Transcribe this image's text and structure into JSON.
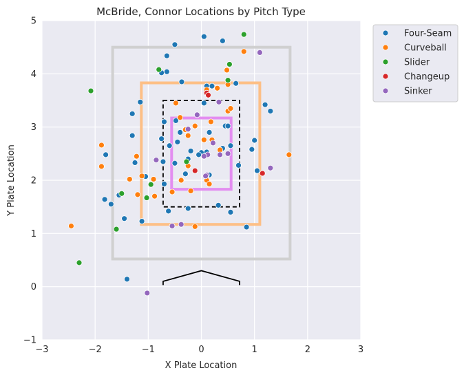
{
  "chart_data": {
    "type": "scatter",
    "title": "McBride, Connor Locations by Pitch Type",
    "xlabel": "X Plate Location",
    "ylabel": "Y Plate Location",
    "xlim": [
      -3,
      3
    ],
    "ylim": [
      -1,
      5
    ],
    "xticks": [
      "−3",
      "−2",
      "−1",
      "0",
      "1",
      "2",
      "3"
    ],
    "yticks": [
      "−1",
      "0",
      "1",
      "2",
      "3",
      "4",
      "5"
    ],
    "grid": true,
    "legend_position": "outside-top-right",
    "zones": [
      {
        "name": "outer-zone",
        "color": "#d0d0d0",
        "style": "solid",
        "x": [
          -1.67,
          1.67
        ],
        "y": [
          0.52,
          4.5
        ]
      },
      {
        "name": "orange-zone",
        "color": "#fdbf86",
        "style": "solid",
        "x": [
          -1.13,
          1.1
        ],
        "y": [
          1.17,
          3.83
        ]
      },
      {
        "name": "strike-zone",
        "color": "#000000",
        "style": "dashed",
        "x": [
          -0.72,
          0.72
        ],
        "y": [
          1.5,
          3.5
        ]
      },
      {
        "name": "inner-zone",
        "color": "#e38df0",
        "style": "solid",
        "x": [
          -0.56,
          0.56
        ],
        "y": [
          1.83,
          3.17
        ]
      }
    ],
    "plate": [
      [
        -0.72,
        0.03
      ],
      [
        -0.72,
        0.1
      ],
      [
        0,
        0.3
      ],
      [
        0.72,
        0.1
      ],
      [
        0.72,
        0.03
      ]
    ],
    "series": [
      {
        "name": "Four-Seam",
        "color": "#1f77b4",
        "points": [
          [
            0.05,
            4.7
          ],
          [
            0.4,
            4.62
          ],
          [
            -0.5,
            4.55
          ],
          [
            -0.65,
            4.34
          ],
          [
            -0.65,
            4.04
          ],
          [
            -0.75,
            4.02
          ],
          [
            -0.37,
            3.85
          ],
          [
            0.2,
            3.77
          ],
          [
            0.1,
            3.77
          ],
          [
            0.65,
            3.82
          ],
          [
            -1.15,
            3.47
          ],
          [
            0.05,
            3.45
          ],
          [
            1.2,
            3.42
          ],
          [
            1.3,
            3.3
          ],
          [
            -1.3,
            3.25
          ],
          [
            -0.48,
            3.12
          ],
          [
            -0.7,
            3.1
          ],
          [
            -0.4,
            2.9
          ],
          [
            0.15,
            2.9
          ],
          [
            0.45,
            3.02
          ],
          [
            0.5,
            3.02
          ],
          [
            -1.3,
            2.84
          ],
          [
            -0.75,
            2.78
          ],
          [
            -0.45,
            2.72
          ],
          [
            0.0,
            2.52
          ],
          [
            0.1,
            2.53
          ],
          [
            -0.6,
            2.65
          ],
          [
            0.55,
            2.65
          ],
          [
            0.4,
            2.6
          ],
          [
            1.0,
            2.75
          ],
          [
            0.95,
            2.58
          ],
          [
            -1.8,
            2.48
          ],
          [
            -0.2,
            2.55
          ],
          [
            -0.05,
            2.48
          ],
          [
            -1.25,
            2.33
          ],
          [
            -0.72,
            2.35
          ],
          [
            -0.25,
            2.4
          ],
          [
            -0.5,
            2.32
          ],
          [
            0.7,
            2.28
          ],
          [
            0.15,
            2.1
          ],
          [
            -0.3,
            2.12
          ],
          [
            1.05,
            2.18
          ],
          [
            -1.05,
            2.07
          ],
          [
            -0.7,
            1.93
          ],
          [
            -1.55,
            1.72
          ],
          [
            -1.82,
            1.64
          ],
          [
            -1.7,
            1.55
          ],
          [
            -0.25,
            1.47
          ],
          [
            0.32,
            1.53
          ],
          [
            0.55,
            1.4
          ],
          [
            -0.62,
            1.42
          ],
          [
            -1.45,
            1.28
          ],
          [
            -1.12,
            1.23
          ],
          [
            0.85,
            1.12
          ],
          [
            -1.4,
            0.14
          ]
        ]
      },
      {
        "name": "Curveball",
        "color": "#ff7f0e",
        "points": [
          [
            0.8,
            4.42
          ],
          [
            0.48,
            4.07
          ],
          [
            0.3,
            3.73
          ],
          [
            0.5,
            3.8
          ],
          [
            0.1,
            3.7
          ],
          [
            -0.48,
            3.45
          ],
          [
            -0.4,
            3.18
          ],
          [
            0.5,
            3.3
          ],
          [
            0.55,
            3.35
          ],
          [
            -0.12,
            3.02
          ],
          [
            -0.3,
            2.95
          ],
          [
            0.18,
            3.1
          ],
          [
            0.05,
            2.76
          ],
          [
            0.2,
            2.76
          ],
          [
            -0.25,
            2.84
          ],
          [
            -1.88,
            2.66
          ],
          [
            0.35,
            2.57
          ],
          [
            -1.22,
            2.45
          ],
          [
            -1.88,
            2.26
          ],
          [
            -0.25,
            2.27
          ],
          [
            -0.38,
            2.0
          ],
          [
            0.1,
            2.0
          ],
          [
            -1.12,
            2.08
          ],
          [
            -1.35,
            2.02
          ],
          [
            -0.9,
            2.02
          ],
          [
            -0.2,
            1.8
          ],
          [
            0.15,
            1.93
          ],
          [
            -0.55,
            1.78
          ],
          [
            -1.2,
            1.73
          ],
          [
            -0.88,
            1.7
          ],
          [
            -0.12,
            1.13
          ],
          [
            -2.45,
            1.14
          ],
          [
            1.65,
            2.48
          ]
        ]
      },
      {
        "name": "Slider",
        "color": "#2ca02c",
        "points": [
          [
            0.8,
            4.74
          ],
          [
            0.53,
            4.18
          ],
          [
            -0.8,
            4.08
          ],
          [
            0.5,
            3.88
          ],
          [
            -2.08,
            3.68
          ],
          [
            -0.28,
            2.35
          ],
          [
            -0.95,
            1.92
          ],
          [
            -1.5,
            1.75
          ],
          [
            -1.03,
            1.67
          ],
          [
            -1.6,
            1.08
          ],
          [
            -2.3,
            0.45
          ]
        ]
      },
      {
        "name": "Changeup",
        "color": "#d62728",
        "points": [
          [
            0.1,
            3.64
          ],
          [
            0.13,
            3.6
          ],
          [
            -0.12,
            2.18
          ],
          [
            1.15,
            2.13
          ]
        ]
      },
      {
        "name": "Sinker",
        "color": "#9467bd",
        "points": [
          [
            1.1,
            4.4
          ],
          [
            0.33,
            3.47
          ],
          [
            -0.08,
            3.23
          ],
          [
            -0.25,
            2.96
          ],
          [
            0.22,
            2.7
          ],
          [
            0.35,
            2.48
          ],
          [
            0.5,
            2.5
          ],
          [
            0.12,
            2.48
          ],
          [
            0.05,
            2.45
          ],
          [
            -0.85,
            2.38
          ],
          [
            0.1,
            2.1
          ],
          [
            0.08,
            2.08
          ],
          [
            1.3,
            2.23
          ],
          [
            -0.55,
            1.14
          ],
          [
            -0.38,
            1.17
          ],
          [
            -1.02,
            -0.12
          ]
        ]
      }
    ]
  }
}
